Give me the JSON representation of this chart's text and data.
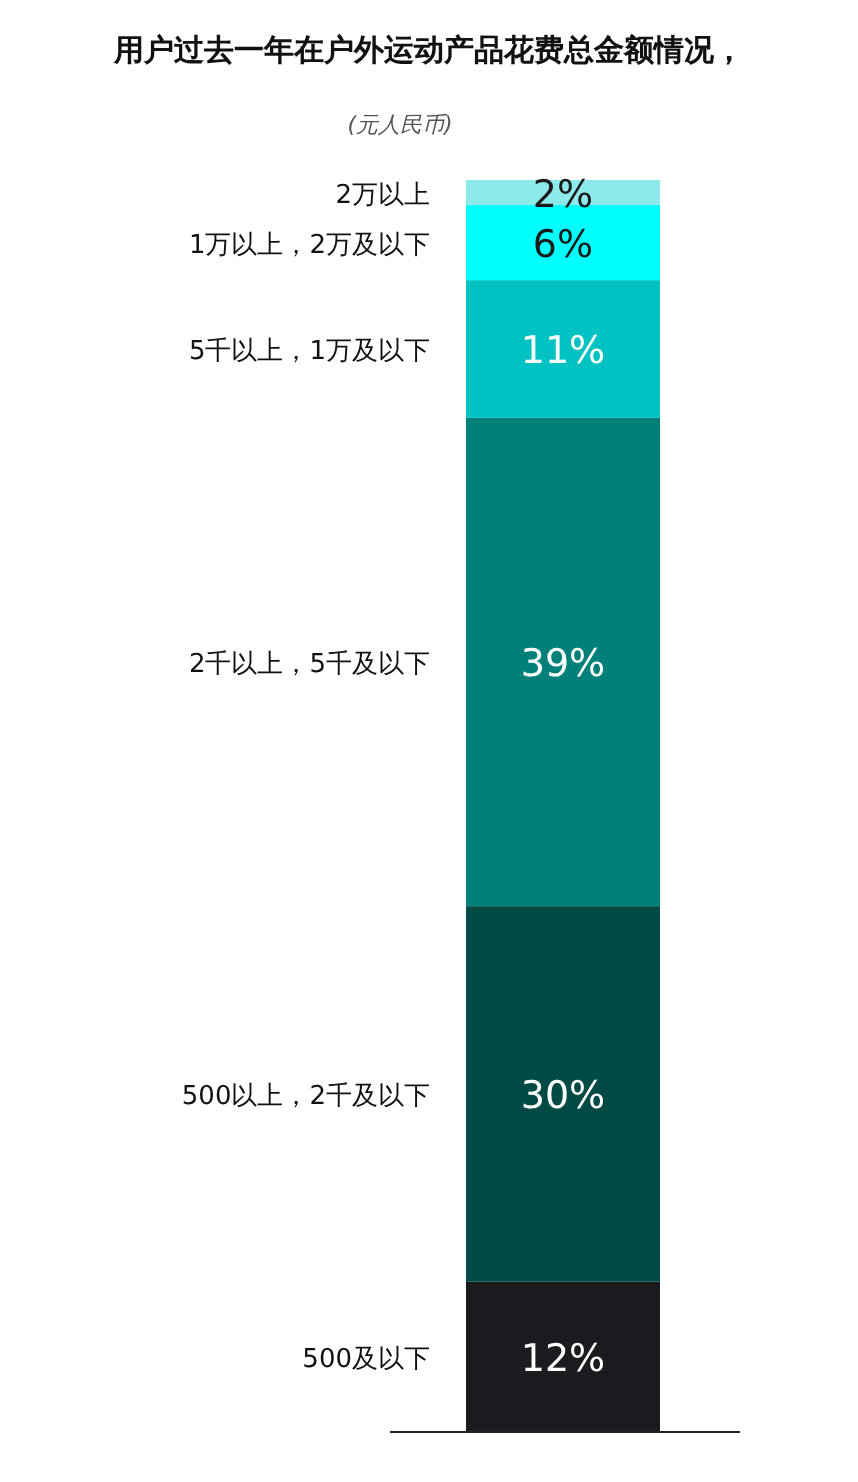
{
  "chart_data": {
    "type": "bar",
    "stacked": true,
    "title": "用户过去一年在户外运动产品花费总金额情况，",
    "subtitle": "(元人民币)",
    "categories": [
      null
    ],
    "series": [
      {
        "name": "500及以下",
        "color": "#1a1b1e",
        "values": [
          12
        ],
        "value_labels": [
          "12%"
        ]
      },
      {
        "name": "500以上，2千及以下",
        "color": "#004a46",
        "values": [
          30
        ],
        "value_labels": [
          "30%"
        ]
      },
      {
        "name": "2千以上，5千及以下",
        "color": "#008079",
        "values": [
          39
        ],
        "value_labels": [
          "39%"
        ]
      },
      {
        "name": "5千以上，1万及以下",
        "color": "#00c2c2",
        "values": [
          11
        ],
        "value_labels": [
          "11%"
        ]
      },
      {
        "name": "1万以上，2万及以下",
        "color": "#00ffff",
        "values": [
          6
        ],
        "value_labels": [
          "6%"
        ]
      },
      {
        "name": "2万以上",
        "color": "#8ceaea",
        "values": [
          2
        ],
        "value_labels": [
          "2%"
        ]
      }
    ]
  }
}
